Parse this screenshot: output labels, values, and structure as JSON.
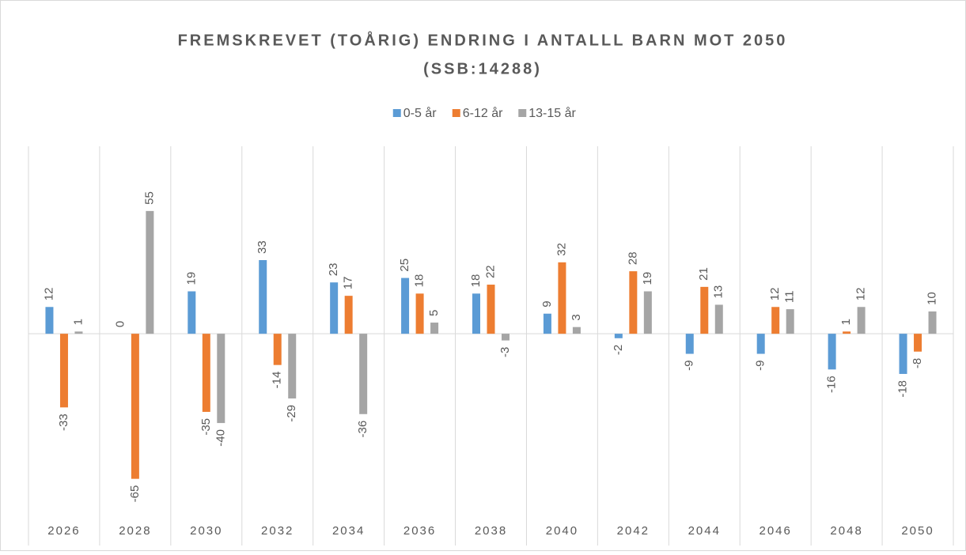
{
  "chart_data": {
    "type": "bar",
    "title": "FREMSKREVET (TOÅRIG) ENDRING I ANTALLL BARN MOT 2050",
    "subtitle": "(SSB:14288)",
    "categories": [
      "2026",
      "2028",
      "2030",
      "2032",
      "2034",
      "2036",
      "2038",
      "2040",
      "2042",
      "2044",
      "2046",
      "2048",
      "2050"
    ],
    "series": [
      {
        "name": "0-5 år",
        "color": "#5b9bd5",
        "values": [
          12,
          0,
          19,
          33,
          23,
          25,
          18,
          9,
          -2,
          -9,
          -9,
          -16,
          -18
        ]
      },
      {
        "name": "6-12 år",
        "color": "#ed7d31",
        "values": [
          -33,
          -65,
          -35,
          -14,
          17,
          18,
          22,
          32,
          28,
          21,
          12,
          1,
          -8
        ]
      },
      {
        "name": "13-15 år",
        "color": "#a5a5a5",
        "values": [
          1,
          55,
          -40,
          -29,
          -36,
          5,
          -3,
          3,
          19,
          13,
          11,
          12,
          10
        ]
      }
    ],
    "ylim": [
      -80,
      84
    ],
    "legend": "top"
  }
}
